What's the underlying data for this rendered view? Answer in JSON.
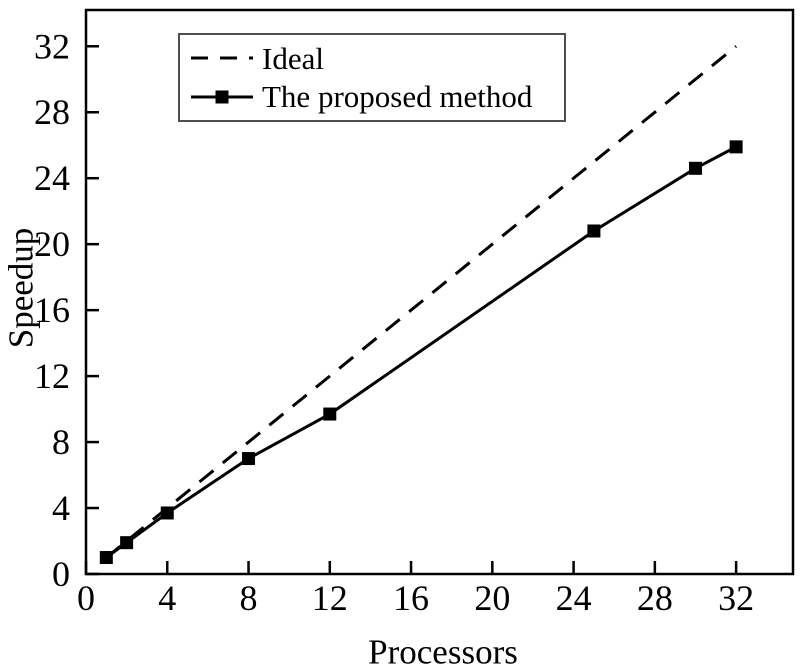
{
  "figure": {
    "background": "#ffffff",
    "axis_color": "#000000",
    "text_color": "#000000"
  },
  "chart_data": {
    "type": "line",
    "title": "",
    "xlabel": "Processors",
    "ylabel": "Speedup",
    "xlim": [
      0,
      34.8
    ],
    "ylim": [
      0,
      34.2
    ],
    "xticks": [
      0,
      4,
      8,
      12,
      16,
      20,
      24,
      28,
      32
    ],
    "yticks": [
      0,
      4,
      8,
      12,
      16,
      20,
      24,
      28,
      32
    ],
    "grid": false,
    "legend_position": "top-left",
    "series": [
      {
        "name": "Ideal",
        "line_style": "dashed",
        "marker": "none",
        "color": "#000000",
        "points": [
          [
            1,
            1
          ],
          [
            32,
            32
          ]
        ]
      },
      {
        "name": "The proposed method",
        "line_style": "solid",
        "marker": "filled-square",
        "color": "#000000",
        "points": [
          [
            1,
            1.0
          ],
          [
            2,
            1.9
          ],
          [
            4,
            3.7
          ],
          [
            8,
            7.0
          ],
          [
            12,
            9.7
          ],
          [
            25,
            20.8
          ],
          [
            30,
            24.6
          ],
          [
            32,
            25.9
          ]
        ]
      }
    ]
  }
}
